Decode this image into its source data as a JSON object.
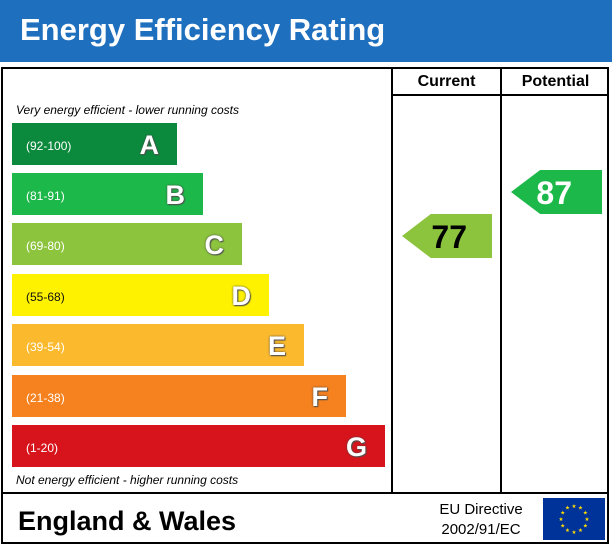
{
  "header": {
    "title": "Energy Efficiency Rating"
  },
  "columns": {
    "current": "Current",
    "potential": "Potential"
  },
  "notes": {
    "top": "Very energy efficient - lower running costs",
    "bottom": "Not energy efficient - higher running costs"
  },
  "bands": [
    {
      "range": "(92-100)",
      "letter": "A",
      "color": "#0b8a3d"
    },
    {
      "range": "(81-91)",
      "letter": "B",
      "color": "#1db84a"
    },
    {
      "range": "(69-80)",
      "letter": "C",
      "color": "#8cc43e"
    },
    {
      "range": "(55-68)",
      "letter": "D",
      "color": "#fff200"
    },
    {
      "range": "(39-54)",
      "letter": "E",
      "color": "#fbb92d"
    },
    {
      "range": "(21-38)",
      "letter": "F",
      "color": "#f5811f"
    },
    {
      "range": "(1-20)",
      "letter": "G",
      "color": "#d7141c"
    }
  ],
  "current_rating": {
    "value": "77",
    "band": "C",
    "color": "#8cc43e"
  },
  "potential_rating": {
    "value": "87",
    "band": "B",
    "color": "#1db84a"
  },
  "footer": {
    "region": "England & Wales",
    "directive_line1": "EU Directive",
    "directive_line2": "2002/91/EC",
    "flag_icon": "eu-flag-icon",
    "flag_color": "#003399",
    "star_color": "#ffdd00"
  }
}
